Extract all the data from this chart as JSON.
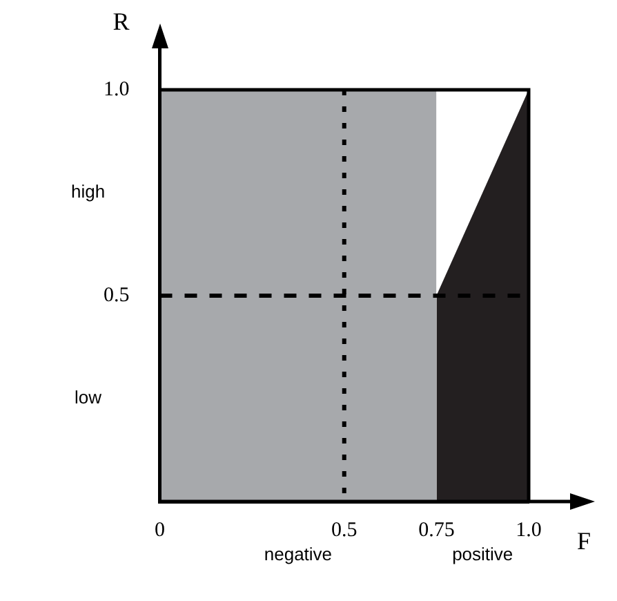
{
  "chart_data": {
    "type": "area",
    "xlabel": "F",
    "ylabel": "R",
    "series": [
      {
        "color": "#a7a9ac",
        "x": [
          0,
          0.75
        ],
        "values": [
          1.0,
          1.0
        ]
      },
      {
        "color": "#231f20",
        "x": [
          0.75,
          1.0
        ],
        "values": [
          0.5,
          1.0
        ]
      }
    ],
    "xlim": [
      0,
      1.0
    ],
    "ylim": [
      0,
      1.0
    ],
    "xticks": [
      {
        "value": 0,
        "label": "0"
      },
      0.5,
      0.75,
      {
        "value": 1,
        "label": "1.0"
      }
    ],
    "yticks": [
      0.5,
      {
        "value": 1,
        "label": "1.0"
      }
    ],
    "ref_lines": [
      {
        "axis": "x",
        "value": 0.5,
        "line_style": "dotted",
        "color": "#000000"
      },
      {
        "axis": "y",
        "value": 0.5,
        "line_style": "dashed",
        "color": "#000000"
      }
    ],
    "annotations": [
      "high",
      "low",
      "negative",
      "positive"
    ]
  }
}
